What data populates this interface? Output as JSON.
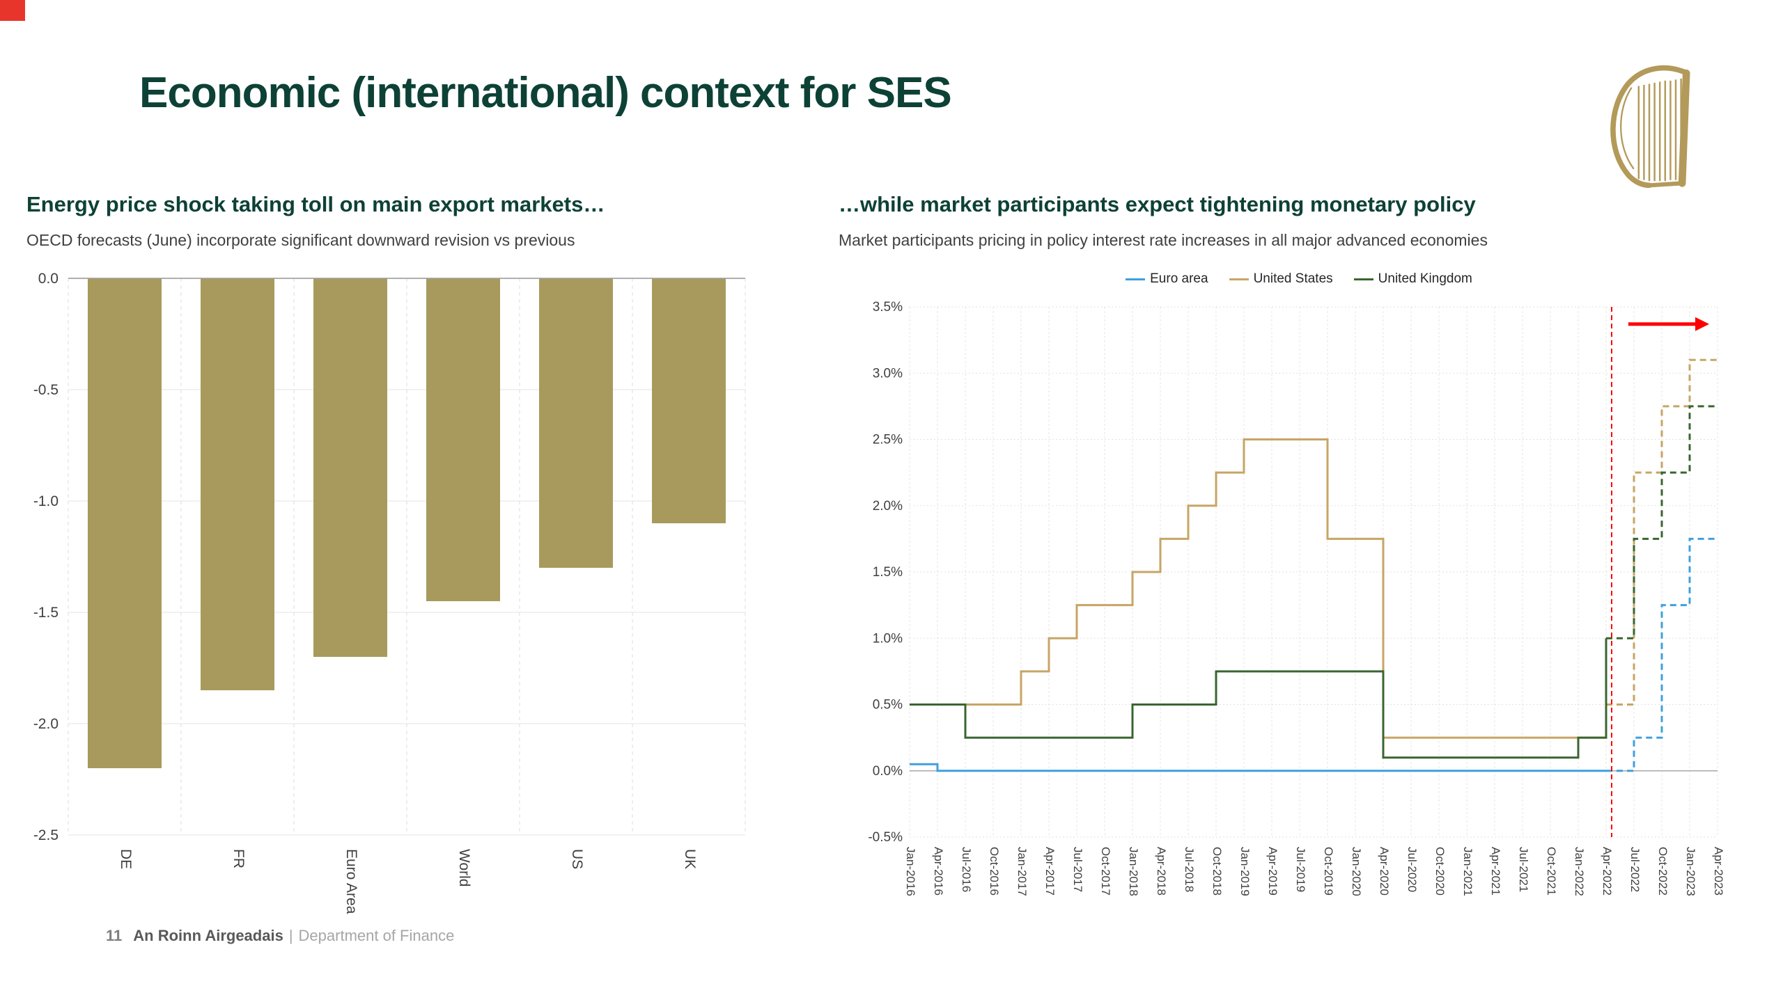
{
  "slide": {
    "title": "Economic (international) context for SES",
    "corner_marker_color": "#e8352c"
  },
  "logo": {
    "name": "harp-logo",
    "color": "#b39a5a"
  },
  "footer": {
    "page_number": "11",
    "org_irish": "An Roinn Airgeadais",
    "separator": "|",
    "org_english": "Department of Finance"
  },
  "chart_data": [
    {
      "type": "bar",
      "title": "Energy price shock taking toll on main export markets…",
      "subtitle": "OECD forecasts (June) incorporate significant downward revision vs previous",
      "categories": [
        "DE",
        "FR",
        "Euro Area",
        "World",
        "US",
        "UK"
      ],
      "values": [
        -2.2,
        -1.85,
        -1.7,
        -1.45,
        -1.3,
        -1.1
      ],
      "ylim": [
        -2.5,
        0.0
      ],
      "yticks": [
        0.0,
        -0.5,
        -1.0,
        -1.5,
        -2.0,
        -2.5
      ],
      "bar_color": "#a79a5c",
      "grid": true,
      "xlabel": "",
      "ylabel": ""
    },
    {
      "type": "line",
      "title": "…while market participants expect tightening monetary policy",
      "subtitle": "Market participants pricing in policy interest rate increases in all major advanced economies",
      "ylim": [
        -0.5,
        3.5
      ],
      "yticks": [
        3.5,
        3.0,
        2.5,
        2.0,
        1.5,
        1.0,
        0.5,
        0.0,
        -0.5
      ],
      "ytick_suffix": "%",
      "grid": true,
      "legend_position": "top",
      "x_labels": [
        "Jan-2016",
        "Apr-2016",
        "Jul-2016",
        "Oct-2016",
        "Jan-2017",
        "Apr-2017",
        "Jul-2017",
        "Oct-2017",
        "Jan-2018",
        "Apr-2018",
        "Jul-2018",
        "Oct-2018",
        "Jan-2019",
        "Apr-2019",
        "Jul-2019",
        "Oct-2019",
        "Jan-2020",
        "Apr-2020",
        "Jul-2020",
        "Oct-2020",
        "Jan-2021",
        "Apr-2021",
        "Jul-2021",
        "Oct-2021",
        "Jan-2022",
        "Apr-2022",
        "Jul-2022",
        "Oct-2022",
        "Jan-2023",
        "Apr-2023"
      ],
      "forecast_from": 26,
      "series": [
        {
          "name": "Euro area",
          "color": "#3fa0dd",
          "values": [
            0.05,
            0,
            0,
            0,
            0,
            0,
            0,
            0,
            0,
            0,
            0,
            0,
            0,
            0,
            0,
            0,
            0,
            0,
            0,
            0,
            0,
            0,
            0,
            0,
            0,
            0,
            0.25,
            1.25,
            1.75,
            1.75
          ]
        },
        {
          "name": "United States",
          "color": "#c7a565",
          "values": [
            0.5,
            0.5,
            0.5,
            0.5,
            0.75,
            1.0,
            1.25,
            1.25,
            1.5,
            1.75,
            2.0,
            2.25,
            2.5,
            2.5,
            2.5,
            1.75,
            1.75,
            0.25,
            0.25,
            0.25,
            0.25,
            0.25,
            0.25,
            0.25,
            0.25,
            0.5,
            2.25,
            2.75,
            3.1,
            3.1
          ]
        },
        {
          "name": "United Kingdom",
          "color": "#3a6530",
          "values": [
            0.5,
            0.5,
            0.25,
            0.25,
            0.25,
            0.25,
            0.25,
            0.25,
            0.5,
            0.5,
            0.5,
            0.75,
            0.75,
            0.75,
            0.75,
            0.75,
            0.75,
            0.1,
            0.1,
            0.1,
            0.1,
            0.1,
            0.1,
            0.1,
            0.25,
            1.0,
            1.75,
            2.25,
            2.75,
            2.75
          ]
        }
      ],
      "annotations": {
        "color": "#fe0000",
        "forecast_vline_x": 25.2,
        "arrow_y": 3.37,
        "arrow_x1": 25.8,
        "arrow_x2": 28.2
      }
    }
  ]
}
